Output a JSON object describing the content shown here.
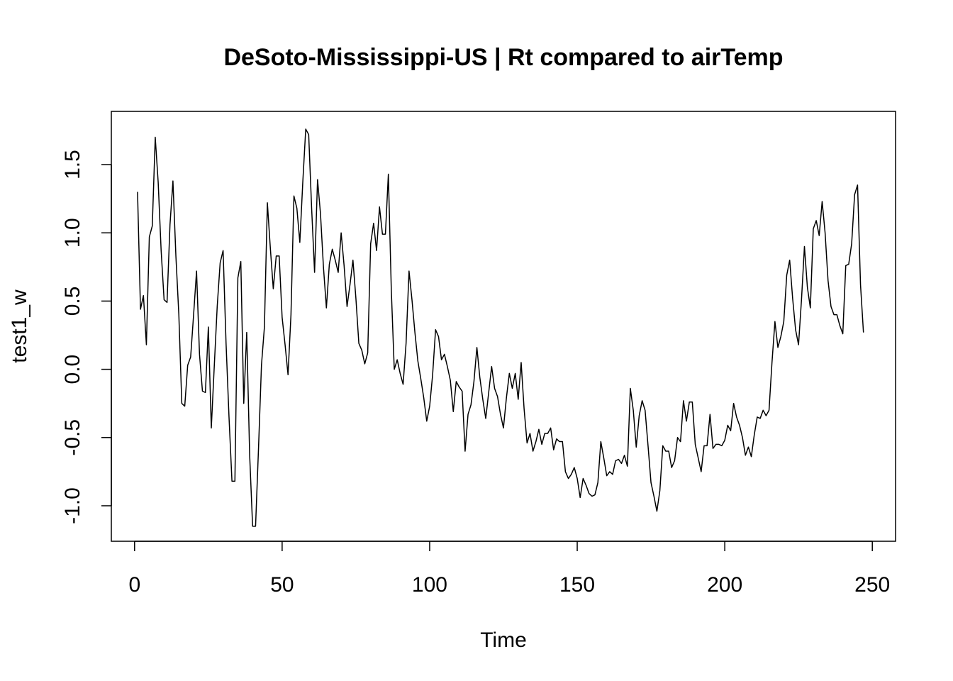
{
  "chart_data": {
    "type": "line",
    "title": "DeSoto-Mississippi-US | Rt compared to airTemp",
    "xlabel": "Time",
    "ylabel": "test1_w",
    "xlim": [
      -7.88,
      257.88
    ],
    "ylim": [
      -1.26,
      1.89
    ],
    "x_ticks": [
      0,
      50,
      100,
      150,
      200,
      250
    ],
    "x_tick_labels": [
      "0",
      "50",
      "100",
      "150",
      "200",
      "250"
    ],
    "y_ticks": [
      -1.0,
      -0.5,
      0.0,
      0.5,
      1.0,
      1.5
    ],
    "y_tick_labels": [
      "-1.0",
      "-0.5",
      "0.0",
      "0.5",
      "1.0",
      "1.5"
    ],
    "grid": false,
    "legend": "none",
    "line_color": "#000000",
    "series": [
      {
        "x_start": 1,
        "values": [
          1.3,
          0.44,
          0.54,
          0.18,
          0.97,
          1.05,
          1.7,
          1.37,
          0.87,
          0.51,
          0.49,
          1.06,
          1.38,
          0.83,
          0.4,
          -0.25,
          -0.27,
          0.03,
          0.09,
          0.4,
          0.72,
          0.11,
          -0.16,
          -0.17,
          0.31,
          -0.43,
          0.02,
          0.46,
          0.78,
          0.87,
          0.19,
          -0.35,
          -0.82,
          -0.82,
          0.67,
          0.79,
          -0.25,
          0.27,
          -0.63,
          -1.15,
          -1.15,
          -0.58,
          0.03,
          0.31,
          1.22,
          0.89,
          0.59,
          0.83,
          0.83,
          0.38,
          0.18,
          -0.04,
          0.4,
          1.27,
          1.18,
          0.93,
          1.37,
          1.76,
          1.72,
          1.18,
          0.71,
          1.39,
          1.14,
          0.75,
          0.45,
          0.77,
          0.88,
          0.8,
          0.71,
          1.0,
          0.76,
          0.46,
          0.62,
          0.8,
          0.52,
          0.19,
          0.14,
          0.04,
          0.12,
          0.92,
          1.07,
          0.87,
          1.19,
          0.99,
          0.99,
          1.43,
          0.58,
          0.0,
          0.07,
          -0.03,
          -0.11,
          0.19,
          0.72,
          0.51,
          0.27,
          0.06,
          -0.07,
          -0.21,
          -0.38,
          -0.27,
          -0.04,
          0.29,
          0.24,
          0.07,
          0.11,
          0.02,
          -0.08,
          -0.31,
          -0.09,
          -0.13,
          -0.16,
          -0.6,
          -0.33,
          -0.26,
          -0.09,
          0.16,
          -0.06,
          -0.22,
          -0.36,
          -0.17,
          0.02,
          -0.14,
          -0.2,
          -0.33,
          -0.43,
          -0.21,
          -0.03,
          -0.14,
          -0.03,
          -0.22,
          0.05,
          -0.29,
          -0.54,
          -0.47,
          -0.6,
          -0.53,
          -0.44,
          -0.55,
          -0.47,
          -0.47,
          -0.43,
          -0.59,
          -0.51,
          -0.53,
          -0.53,
          -0.75,
          -0.8,
          -0.77,
          -0.72,
          -0.8,
          -0.94,
          -0.8,
          -0.85,
          -0.91,
          -0.93,
          -0.92,
          -0.83,
          -0.53,
          -0.65,
          -0.78,
          -0.75,
          -0.77,
          -0.67,
          -0.66,
          -0.69,
          -0.63,
          -0.71,
          -0.14,
          -0.3,
          -0.57,
          -0.34,
          -0.23,
          -0.3,
          -0.56,
          -0.83,
          -0.93,
          -1.04,
          -0.89,
          -0.56,
          -0.6,
          -0.6,
          -0.72,
          -0.67,
          -0.5,
          -0.53,
          -0.23,
          -0.38,
          -0.24,
          -0.24,
          -0.55,
          -0.65,
          -0.75,
          -0.56,
          -0.56,
          -0.33,
          -0.58,
          -0.55,
          -0.55,
          -0.56,
          -0.52,
          -0.41,
          -0.45,
          -0.25,
          -0.35,
          -0.41,
          -0.5,
          -0.63,
          -0.57,
          -0.64,
          -0.48,
          -0.35,
          -0.36,
          -0.3,
          -0.34,
          -0.3,
          0.05,
          0.35,
          0.16,
          0.24,
          0.35,
          0.69,
          0.8,
          0.52,
          0.29,
          0.18,
          0.51,
          0.9,
          0.6,
          0.45,
          1.03,
          1.09,
          0.98,
          1.23,
          1.0,
          0.65,
          0.46,
          0.4,
          0.4,
          0.32,
          0.26,
          0.76,
          0.77,
          0.92,
          1.28,
          1.35,
          0.62,
          0.27
        ]
      }
    ]
  }
}
